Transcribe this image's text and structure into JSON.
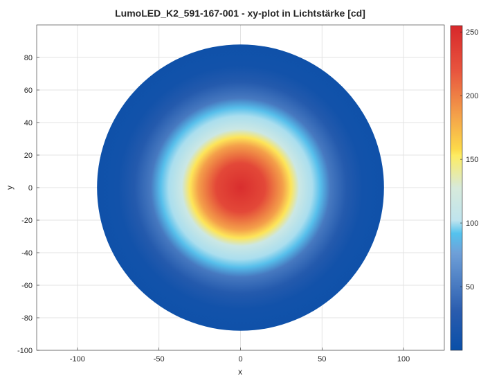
{
  "chart_data": {
    "type": "heatmap",
    "title": "LumoLED_K2_591-167-001 - xy-plot in Lichtstärke [cd]",
    "xlabel": "x",
    "ylabel": "y",
    "xlim": [
      -125,
      125
    ],
    "ylim": [
      -100,
      100
    ],
    "x_ticks": [
      -100,
      -50,
      0,
      50,
      100
    ],
    "y_ticks": [
      -100,
      -80,
      -60,
      -40,
      -20,
      0,
      20,
      40,
      60,
      80
    ],
    "grid": true,
    "colorbar": {
      "range": [
        0,
        255
      ],
      "ticks": [
        50,
        100,
        150,
        200,
        250
      ],
      "colormap": [
        "#0a4fa8",
        "#2a5cae",
        "#6fa0d8",
        "#54c3ee",
        "#bfe4ee",
        "#d7eadb",
        "#fdec63",
        "#fcd94a",
        "#f4a34a",
        "#e8553e",
        "#d7282b"
      ],
      "colormap_positions": [
        0.0,
        0.12,
        0.3,
        0.36,
        0.4,
        0.5,
        0.6,
        0.62,
        0.72,
        0.86,
        1.0
      ]
    },
    "field": {
      "extent_radius": 88,
      "center": [
        0,
        0
      ],
      "center_value": 250,
      "outer_value": 5,
      "profile": [
        {
          "r": 0,
          "value": 250
        },
        {
          "r": 15,
          "value": 230
        },
        {
          "r": 26,
          "value": 185
        },
        {
          "r": 31,
          "value": 155
        },
        {
          "r": 36,
          "value": 115
        },
        {
          "r": 44,
          "value": 100
        },
        {
          "r": 49,
          "value": 90
        },
        {
          "r": 55,
          "value": 50
        },
        {
          "r": 65,
          "value": 25
        },
        {
          "r": 75,
          "value": 8
        },
        {
          "r": 88,
          "value": 5
        }
      ]
    }
  }
}
